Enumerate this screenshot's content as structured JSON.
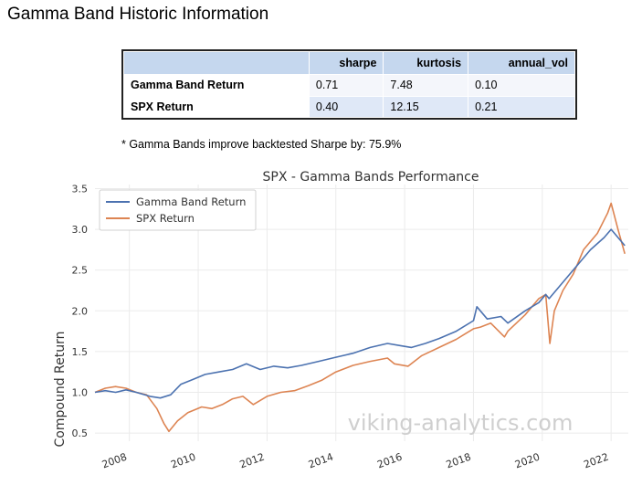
{
  "page": {
    "title": "Gamma Band Historic Information"
  },
  "stats_table": {
    "columns": [
      "",
      "sharpe",
      "kurtosis",
      "annual_vol"
    ],
    "rows": [
      {
        "label": "Gamma Band Return",
        "sharpe": "0.71",
        "kurtosis": "7.48",
        "annual_vol": "0.10"
      },
      {
        "label": "SPX Return",
        "sharpe": "0.40",
        "kurtosis": "12.15",
        "annual_vol": "0.21"
      }
    ]
  },
  "note": "* Gamma Bands improve backtested Sharpe by: 75.9%",
  "watermark": "viking-analytics.com",
  "chart_data": {
    "type": "line",
    "title": "SPX - Gamma Bands Performance",
    "xlabel": "",
    "ylabel": "Compound Return",
    "xlim": [
      2007.0,
      2022.5
    ],
    "ylim": [
      0.4,
      3.55
    ],
    "xticks": [
      "2008",
      "2010",
      "2012",
      "2014",
      "2016",
      "2018",
      "2020",
      "2022"
    ],
    "yticks": [
      "0.5",
      "1.0",
      "1.5",
      "2.0",
      "2.5",
      "3.0",
      "3.5"
    ],
    "grid": true,
    "legend_position": "top-left",
    "colors": {
      "gamma": "#4c72b0",
      "spx": "#dd8452"
    },
    "series": [
      {
        "name": "Gamma Band Return",
        "color": "#4c72b0",
        "x": [
          2007.0,
          2007.3,
          2007.6,
          2007.9,
          2008.2,
          2008.6,
          2008.9,
          2009.2,
          2009.5,
          2009.8,
          2010.2,
          2010.6,
          2011.0,
          2011.4,
          2011.8,
          2012.2,
          2012.6,
          2013.0,
          2013.5,
          2014.0,
          2014.5,
          2015.0,
          2015.5,
          2015.9,
          2016.2,
          2016.6,
          2017.0,
          2017.5,
          2018.0,
          2018.1,
          2018.4,
          2018.8,
          2019.0,
          2019.5,
          2019.9,
          2020.1,
          2020.2,
          2020.5,
          2020.8,
          2021.0,
          2021.4,
          2021.8,
          2022.0,
          2022.2,
          2022.4
        ],
        "y": [
          1.0,
          1.02,
          1.0,
          1.03,
          1.0,
          0.95,
          0.93,
          0.97,
          1.1,
          1.15,
          1.22,
          1.25,
          1.28,
          1.35,
          1.28,
          1.32,
          1.3,
          1.33,
          1.38,
          1.43,
          1.48,
          1.55,
          1.6,
          1.57,
          1.55,
          1.6,
          1.66,
          1.75,
          1.88,
          2.05,
          1.9,
          1.93,
          1.85,
          2.0,
          2.1,
          2.2,
          2.15,
          2.3,
          2.45,
          2.55,
          2.75,
          2.9,
          3.0,
          2.9,
          2.8
        ]
      },
      {
        "name": "SPX Return",
        "color": "#dd8452",
        "x": [
          2007.0,
          2007.3,
          2007.6,
          2007.9,
          2008.2,
          2008.5,
          2008.8,
          2009.0,
          2009.15,
          2009.4,
          2009.7,
          2010.1,
          2010.4,
          2010.7,
          2011.0,
          2011.3,
          2011.6,
          2012.0,
          2012.4,
          2012.8,
          2013.2,
          2013.6,
          2014.0,
          2014.5,
          2015.0,
          2015.5,
          2015.7,
          2016.1,
          2016.5,
          2017.0,
          2017.5,
          2018.0,
          2018.2,
          2018.5,
          2018.9,
          2019.0,
          2019.5,
          2019.9,
          2020.1,
          2020.22,
          2020.35,
          2020.6,
          2020.9,
          2021.2,
          2021.6,
          2021.9,
          2022.0,
          2022.2,
          2022.4
        ],
        "y": [
          1.0,
          1.05,
          1.07,
          1.05,
          1.0,
          0.97,
          0.8,
          0.62,
          0.52,
          0.65,
          0.75,
          0.82,
          0.8,
          0.85,
          0.92,
          0.95,
          0.85,
          0.95,
          1.0,
          1.02,
          1.08,
          1.15,
          1.25,
          1.33,
          1.38,
          1.42,
          1.35,
          1.32,
          1.45,
          1.55,
          1.65,
          1.78,
          1.8,
          1.85,
          1.68,
          1.75,
          1.95,
          2.15,
          2.2,
          1.6,
          2.0,
          2.25,
          2.45,
          2.75,
          2.95,
          3.2,
          3.32,
          3.0,
          2.7
        ]
      }
    ]
  }
}
